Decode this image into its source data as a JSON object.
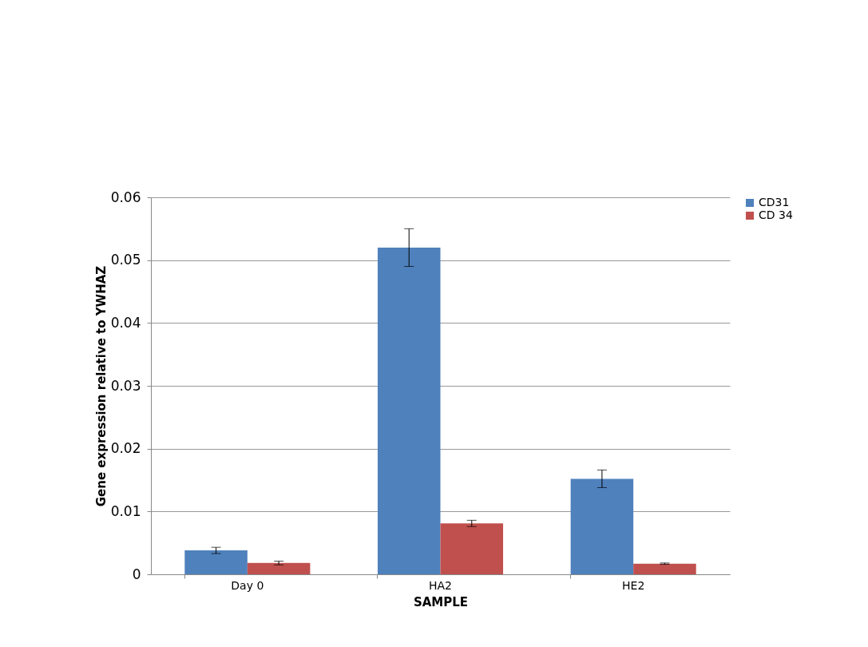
{
  "chart_data": {
    "type": "bar",
    "xlabel": "SAMPLE",
    "ylabel": "Gene expression relative to YWHAZ",
    "categories": [
      "Day 0",
      "HA2",
      "HE2"
    ],
    "series": [
      {
        "name": "CD31",
        "color": "#4f81bd",
        "values": [
          0.0038,
          0.052,
          0.0152
        ],
        "errors": [
          0.0005,
          0.003,
          0.0014
        ]
      },
      {
        "name": "CD 34",
        "color": "#c0504d",
        "values": [
          0.0018,
          0.0081,
          0.0017
        ],
        "errors": [
          0.0003,
          0.0005,
          0.0001
        ]
      }
    ],
    "ylim": [
      0,
      0.06
    ],
    "yticks": [
      0,
      0.01,
      0.02,
      0.03,
      0.04,
      0.05,
      0.06
    ],
    "grid": "y",
    "legend": "right"
  }
}
